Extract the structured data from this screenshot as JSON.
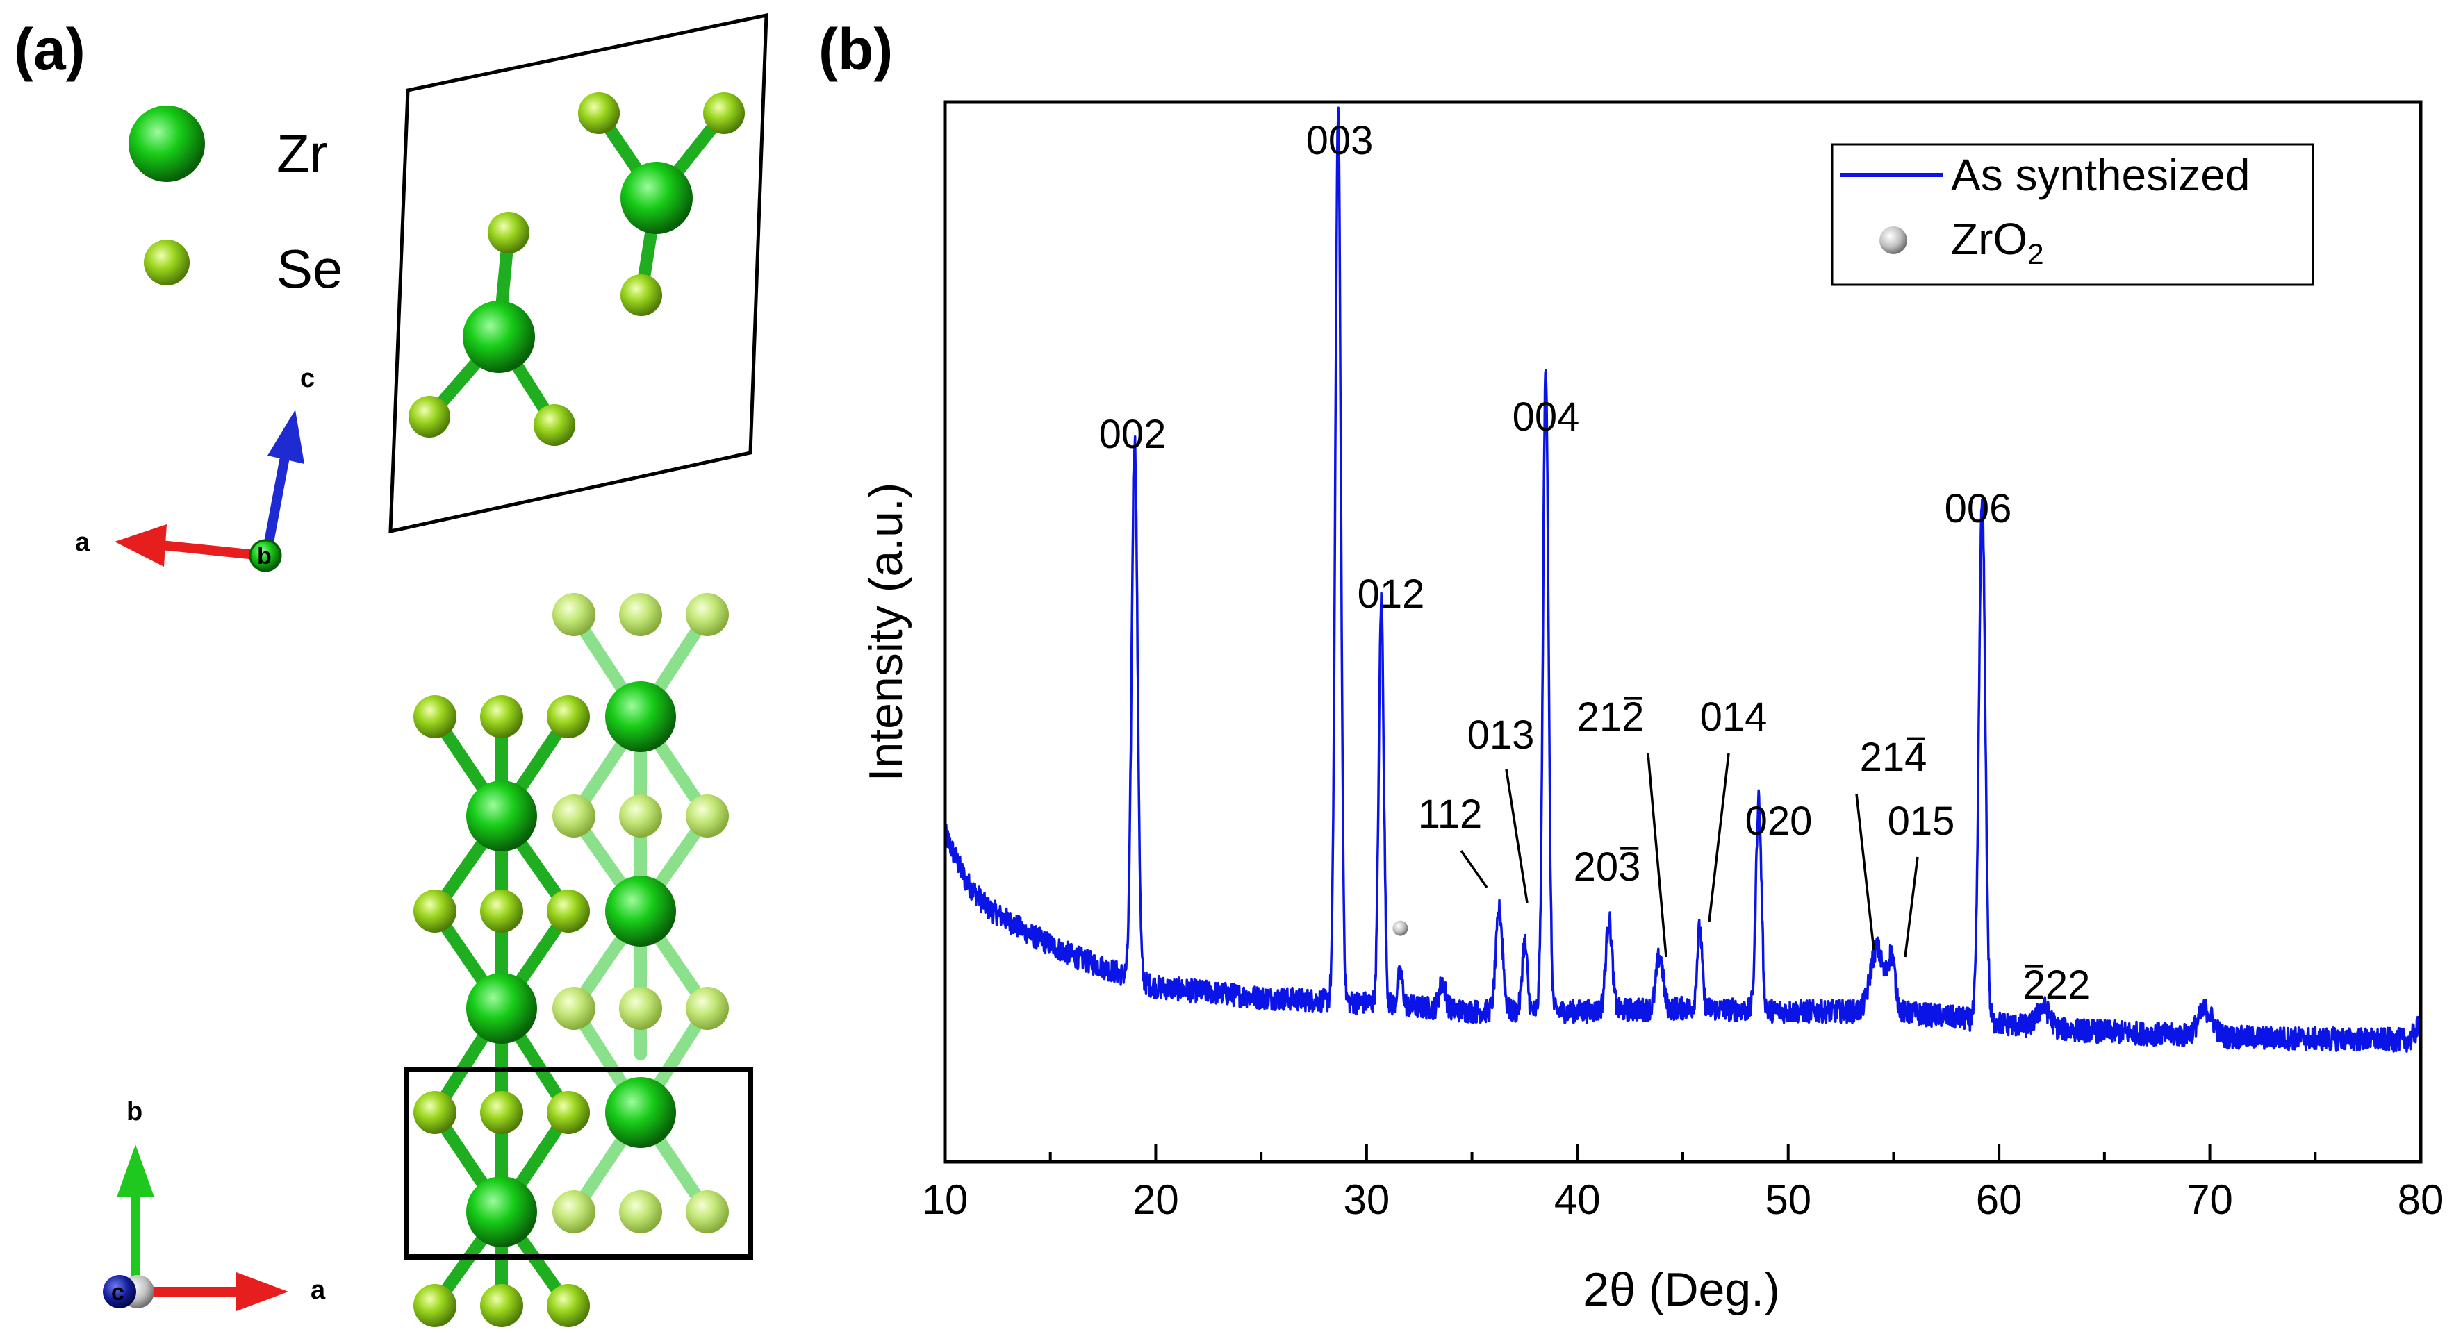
{
  "panel_a": {
    "label": "(a)",
    "legend": [
      {
        "element": "Zr"
      },
      {
        "element": "Se"
      }
    ],
    "axes_top": {
      "c": "c",
      "a": "a",
      "b": "b"
    },
    "axes_bottom": {
      "b": "b",
      "a": "a",
      "c": "c"
    }
  },
  "panel_b": {
    "label": "(b)"
  },
  "colors": {
    "zr": "#14c414",
    "se": "#96d21c",
    "se_back": "#c3e676",
    "line": "#0a14e6",
    "zro2_marker": "#bdbdbd",
    "axis_a": "#e61e1e",
    "axis_b": "#1ec81e",
    "axis_c": "#1e2ad2"
  },
  "chart_data": {
    "type": "line",
    "title": "",
    "xlabel": "2θ (Deg.)",
    "ylabel": "Intensity (a.u.)",
    "xlim": [
      10,
      80
    ],
    "ylim": [
      0,
      100
    ],
    "xticks": [
      10,
      20,
      30,
      40,
      50,
      60,
      70,
      80
    ],
    "xtick_labels": [
      "10",
      "20",
      "30",
      "40",
      "50",
      "60",
      "70",
      "80"
    ],
    "legend": {
      "placement": "top-right",
      "entries": [
        {
          "label": "As synthesized",
          "marker": "line"
        },
        {
          "label": "ZrO",
          "subscript": "2",
          "marker": "circle"
        }
      ]
    },
    "series": [
      {
        "name": "As synthesized",
        "baseline": [
          [
            10,
            31
          ],
          [
            11,
            26.5
          ],
          [
            12,
            24
          ],
          [
            14,
            21.5
          ],
          [
            16,
            19.5
          ],
          [
            18,
            18
          ],
          [
            20,
            16.5
          ],
          [
            25,
            15.5
          ],
          [
            30,
            15
          ],
          [
            35,
            14.2
          ],
          [
            40,
            14.2
          ],
          [
            45,
            14.5
          ],
          [
            50,
            14.2
          ],
          [
            55,
            14.2
          ],
          [
            58,
            13.6
          ],
          [
            62,
            12.6
          ],
          [
            66,
            12.2
          ],
          [
            70,
            11.8
          ],
          [
            75,
            11.6
          ],
          [
            79.5,
            11.5
          ],
          [
            80,
            13
          ]
        ],
        "peaks": [
          {
            "x": 19.0,
            "height": 51,
            "width": 0.14
          },
          {
            "x": 28.65,
            "height": 84,
            "width": 0.13
          },
          {
            "x": 30.7,
            "height": 38,
            "width": 0.12
          },
          {
            "x": 31.6,
            "height": 3,
            "width": 0.12
          },
          {
            "x": 33.6,
            "height": 2.5,
            "width": 0.15
          },
          {
            "x": 36.3,
            "height": 9.5,
            "width": 0.16
          },
          {
            "x": 37.5,
            "height": 6.5,
            "width": 0.12
          },
          {
            "x": 38.5,
            "height": 61,
            "width": 0.13
          },
          {
            "x": 41.5,
            "height": 8.5,
            "width": 0.15
          },
          {
            "x": 43.9,
            "height": 5,
            "width": 0.16
          },
          {
            "x": 45.8,
            "height": 7.5,
            "width": 0.12
          },
          {
            "x": 48.6,
            "height": 20,
            "width": 0.13
          },
          {
            "x": 54.2,
            "height": 6,
            "width": 0.3
          },
          {
            "x": 54.9,
            "height": 5,
            "width": 0.18
          },
          {
            "x": 59.2,
            "height": 49,
            "width": 0.15
          },
          {
            "x": 62.1,
            "height": 2,
            "width": 0.3
          },
          {
            "x": 69.8,
            "height": 2.5,
            "width": 0.35
          }
        ],
        "noise": 1.1
      }
    ],
    "annotations": [
      {
        "label": "002",
        "x": 19.0
      },
      {
        "label": "003",
        "x": 28.65
      },
      {
        "label": "012",
        "x": 30.7
      },
      {
        "label": "004",
        "x": 38.5
      },
      {
        "label": "006",
        "x": 59.2
      },
      {
        "label": "020",
        "x": 48.6
      },
      {
        "label": "112",
        "x": 36.3
      },
      {
        "label": "013",
        "x": 37.5
      },
      {
        "label": "203",
        "x": 41.5,
        "overbar": "last"
      },
      {
        "label": "212",
        "x": 43.9,
        "overbar": "last"
      },
      {
        "label": "014",
        "x": 45.8
      },
      {
        "label": "214",
        "x": 54.2,
        "overbar": "last"
      },
      {
        "label": "015",
        "x": 54.9
      },
      {
        "label": "222",
        "x": 62.1,
        "overbar": "first"
      }
    ],
    "markers": [
      {
        "type": "ZrO2",
        "x": 31.6
      }
    ]
  }
}
